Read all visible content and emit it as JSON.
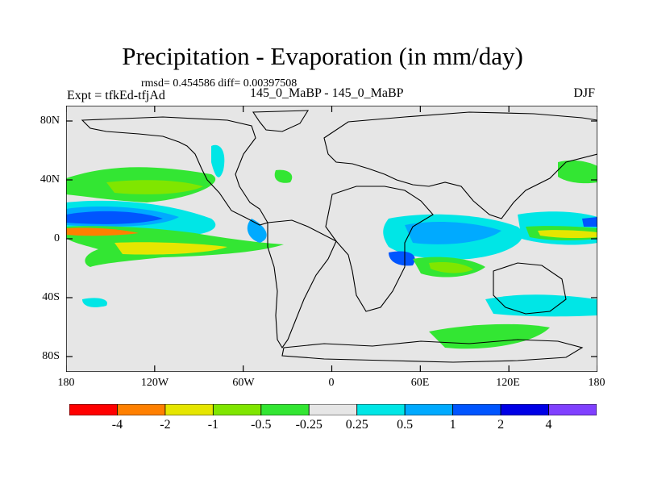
{
  "title": "Precipitation - Evaporation (in mm/day)",
  "stats": "rmsd= 0.454586 diff= 0.00397508",
  "expt": "Expt = tfkEd-tfjAd",
  "subtitle": "145_0_MaBP - 145_0_MaBP",
  "season": "DJF",
  "lat_labels": [
    "80N",
    "40N",
    "0",
    "40S",
    "80S"
  ],
  "lon_labels": [
    "180",
    "120W",
    "60W",
    "0",
    "60E",
    "120E",
    "180"
  ],
  "colorbar": {
    "labels": [
      "-4",
      "-2",
      "-1",
      "-0.5",
      "-0.25",
      "0.25",
      "0.5",
      "1",
      "2",
      "4"
    ],
    "colors": [
      "#ff0000",
      "#ff8000",
      "#e6e600",
      "#80e600",
      "#33e633",
      "#e6e6e6",
      "#00e6e6",
      "#00aaff",
      "#0055ff",
      "#0000e6",
      "#8040ff"
    ]
  },
  "map_colors": {
    "background": "#e6e6e6",
    "coastline": "#000000"
  }
}
